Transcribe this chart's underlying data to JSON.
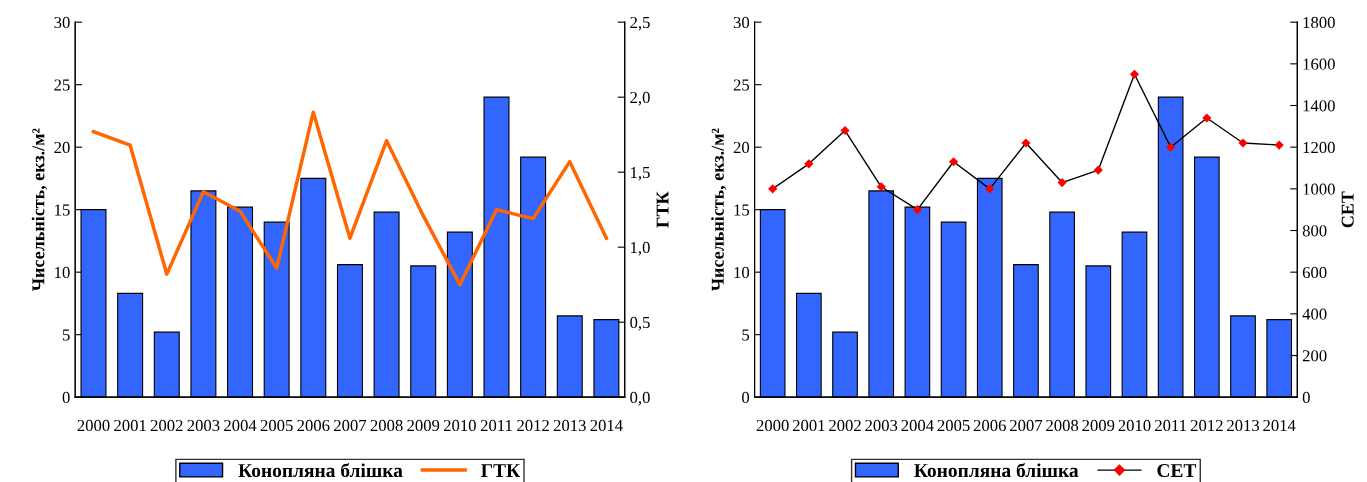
{
  "chart_data": [
    {
      "type": "bar",
      "ylabel": "Чисельність, екз./м²",
      "y2label": "ГТК",
      "legend": "bottom",
      "grid": false,
      "categories": [
        "2000",
        "2001",
        "2002",
        "2003",
        "2004",
        "2005",
        "2006",
        "2007",
        "2008",
        "2009",
        "2010",
        "2011",
        "2012",
        "2013",
        "2014"
      ],
      "ylim": [
        0,
        30
      ],
      "yticks": [
        0,
        5,
        10,
        15,
        20,
        25,
        30
      ],
      "y2lim": [
        0,
        2.5
      ],
      "y2ticks": [
        {
          "value": 0,
          "label": "0,0"
        },
        {
          "value": 0.5,
          "label": "0,5"
        },
        {
          "value": 1.0,
          "label": "1,0"
        },
        {
          "value": 1.5,
          "label": "1,5"
        },
        {
          "value": 2.0,
          "label": "2,0"
        },
        {
          "value": 2.5,
          "label": "2,5"
        }
      ],
      "series": [
        {
          "name": "Конопляна блішка",
          "color": "#3366ff",
          "values": [
            15.0,
            8.3,
            5.2,
            16.5,
            15.2,
            14.0,
            17.5,
            10.6,
            14.8,
            10.5,
            13.2,
            24.0,
            19.2,
            6.5,
            6.2
          ]
        },
        {
          "name": "ГТК",
          "type": "line",
          "axis": "y2",
          "color": "#ff6600",
          "marker": "none",
          "values": [
            1.77,
            1.68,
            0.82,
            1.37,
            1.24,
            0.86,
            1.9,
            1.06,
            1.71,
            1.21,
            0.75,
            1.25,
            1.19,
            1.57,
            1.06
          ]
        }
      ]
    },
    {
      "type": "bar",
      "ylabel": "Чисельність, екз./м²",
      "y2label": "СЕТ",
      "legend": "bottom",
      "grid": false,
      "categories": [
        "2000",
        "2001",
        "2002",
        "2003",
        "2004",
        "2005",
        "2006",
        "2007",
        "2008",
        "2009",
        "2010",
        "2011",
        "2012",
        "2013",
        "2014"
      ],
      "ylim": [
        0,
        30
      ],
      "yticks": [
        0,
        5,
        10,
        15,
        20,
        25,
        30
      ],
      "y2lim": [
        0,
        1800
      ],
      "y2ticks": [
        0,
        200,
        400,
        600,
        800,
        1000,
        1200,
        1400,
        1600,
        1800
      ],
      "series": [
        {
          "name": "Конопляна блішка",
          "color": "#3366ff",
          "values": [
            15.0,
            8.3,
            5.2,
            16.5,
            15.2,
            14.0,
            17.5,
            10.6,
            14.8,
            10.5,
            13.2,
            24.0,
            19.2,
            6.5,
            6.2
          ]
        },
        {
          "name": "СЕТ",
          "type": "line",
          "axis": "y2",
          "color": "#000000",
          "marker": "diamond",
          "colors": [
            "#ff0000",
            "#ff0000",
            "#ff0000",
            "#ff0000",
            "#ff0000",
            "#ff0000",
            "#ff0000",
            "#ff0000",
            "#ff0000",
            "#ff0000",
            "#ff0000",
            "#ff0000",
            "#ff0000",
            "#ff0000",
            "#ff0000"
          ],
          "values": [
            1000,
            1120,
            1280,
            1010,
            900,
            1130,
            1000,
            1220,
            1030,
            1090,
            1550,
            1200,
            1340,
            1220,
            1210
          ]
        }
      ]
    }
  ]
}
